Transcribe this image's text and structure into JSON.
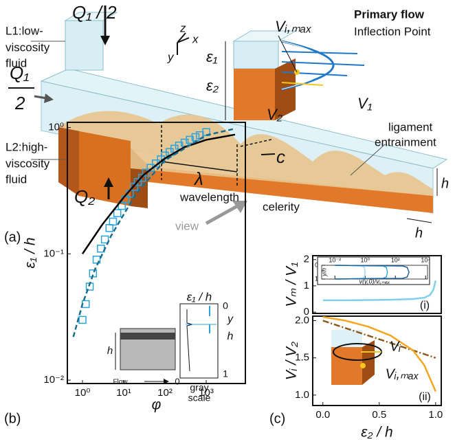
{
  "panel_a": {
    "low_fluid": [
      "L1:low-",
      "viscosity",
      "fluid"
    ],
    "high_fluid": [
      "L2:high-",
      "viscosity",
      "fluid"
    ],
    "q_top": "Q₁ / 2",
    "q_left_num": "Q₁",
    "q_left_den": "2",
    "q_bottom": "Q₂",
    "axes": [
      "z",
      "x",
      "y"
    ],
    "lambda": "λ",
    "wavelength": "wavelength",
    "c": "c",
    "celerity": "celerity",
    "ligament": [
      "ligament",
      "entrainment"
    ],
    "h_height": "h",
    "h_width": "h",
    "view": "view",
    "label": "(a)",
    "inset": {
      "title": "Primary flow",
      "inflection": "Inflection Point",
      "v_imax": "Vᵢ,ₘₐₓ",
      "eps1": "ε₁",
      "eps2": "ε₂",
      "v1": "V₁",
      "v2": "V₂"
    }
  },
  "panel_labels": {
    "b": "(b)",
    "c": "(c)"
  },
  "chart_data": [
    {
      "type": "scatter",
      "xlog": true,
      "ylog": true,
      "xlabel": "φ",
      "ylabel": "ε₁ / h",
      "xlim": [
        0.43,
        8900
      ],
      "ylim": [
        0.0094,
        1.1
      ],
      "xticks": [
        {
          "value": 1,
          "label": "10⁰"
        },
        {
          "value": 10,
          "label": "10¹"
        },
        {
          "value": 100,
          "label": "10²"
        },
        {
          "value": 1000,
          "label": "10³"
        }
      ],
      "yticks": [
        {
          "value": 0.01,
          "label": "10⁻²"
        },
        {
          "value": 0.1,
          "label": "10⁻¹"
        },
        {
          "value": 1,
          "label": "10⁰"
        }
      ],
      "series": [
        {
          "color": "#29a3e0",
          "marker": "square",
          "x": [
            1.0,
            1.2,
            1.5,
            1.8,
            2.2,
            2.8,
            3.5,
            4.5,
            5.5,
            7,
            9,
            11,
            14,
            18,
            22,
            28,
            35,
            45,
            60,
            80,
            100,
            130,
            170,
            220,
            300,
            400,
            550,
            700,
            1000
          ],
          "values": [
            0.03,
            0.04,
            0.055,
            0.07,
            0.09,
            0.11,
            0.13,
            0.16,
            0.18,
            0.21,
            0.24,
            0.27,
            0.3,
            0.34,
            0.37,
            0.4,
            0.44,
            0.48,
            0.52,
            0.56,
            0.6,
            0.64,
            0.68,
            0.72,
            0.76,
            0.8,
            0.84,
            0.87,
            0.92
          ]
        },
        {
          "color": "#000000",
          "x": [
            1,
            3,
            10,
            30,
            100,
            300,
            1000,
            5000
          ],
          "values": [
            0.1,
            0.17,
            0.28,
            0.42,
            0.57,
            0.7,
            0.8,
            0.88
          ]
        },
        {
          "color": "#1a6e8c",
          "dash": "dashed",
          "x": [
            0.6,
            1,
            2,
            5,
            20,
            100,
            1000,
            5000
          ],
          "values": [
            0.022,
            0.04,
            0.075,
            0.14,
            0.3,
            0.55,
            0.87,
            0.98
          ]
        }
      ],
      "inset_labels": [
        "h",
        "Flow",
        "0",
        "gray",
        "scale",
        "ε₁ / h",
        "0",
        "y",
        "h",
        "1"
      ]
    },
    {
      "type": "line",
      "ylabel": "Vₘ / V₁",
      "xlim": [
        -0.09,
        1.05
      ],
      "ylim": [
        -0.05,
        2.15
      ],
      "yticks": [
        0,
        1,
        2
      ],
      "series": [
        {
          "color": "#7fcfef",
          "x": [
            0,
            0.2,
            0.4,
            0.6,
            0.8,
            0.9,
            0.95,
            0.98,
            1.0
          ],
          "values": [
            0.45,
            0.45,
            0.46,
            0.47,
            0.5,
            0.55,
            0.65,
            0.85,
            1.2
          ]
        }
      ],
      "annotations": [
        "(i)"
      ]
    },
    {
      "type": "line",
      "xlabel": "ε₂ / h",
      "ylabel": "Vᵢ / V₂",
      "xlim": [
        -0.09,
        1.05
      ],
      "ylim": [
        0.86,
        2.06
      ],
      "xticks": [
        {
          "value": 0,
          "label": "0.0"
        },
        {
          "value": 0.5,
          "label": "0.5"
        },
        {
          "value": 1,
          "label": "1.0"
        }
      ],
      "yticks": [
        {
          "value": 1,
          "label": "1.0"
        },
        {
          "value": 1.5,
          "label": "1.5"
        },
        {
          "value": 2,
          "label": "2.0"
        }
      ],
      "series": [
        {
          "color": "#8b5a1e",
          "dash": "dashdot",
          "x": [
            0,
            1
          ],
          "values": [
            2.0,
            1.5
          ]
        },
        {
          "color": "#f5a623",
          "x": [
            0,
            0.2,
            0.4,
            0.6,
            0.8,
            0.9,
            1.0
          ],
          "values": [
            2.05,
            2.0,
            1.92,
            1.8,
            1.6,
            1.4,
            1.05
          ]
        }
      ],
      "annotations": [
        "(ii)",
        "Vᵢ",
        "Vᵢ,ₘₐₓ"
      ]
    },
    {
      "type": "line",
      "orientation": "horizontal",
      "xlog": true,
      "yinvert": true,
      "xlabel": "v(y,0)/vᵢ,ₘₐₓ",
      "ylabel": "y/h",
      "xlim": [
        0.00133,
        13300
      ],
      "ylim": [
        0,
        1
      ],
      "xticks": [
        {
          "value": 0.01,
          "label": "10⁻²"
        },
        {
          "value": 1,
          "label": "10⁰"
        },
        {
          "value": 100,
          "label": "10²"
        },
        {
          "value": 10000,
          "label": "10⁴"
        }
      ],
      "yticks": [
        0,
        1
      ],
      "y": [
        0,
        0.05,
        0.15,
        0.5,
        0.85,
        0.95,
        1
      ],
      "series": [
        {
          "color": "#9fdcf5",
          "values": [
            0.01,
            0.6,
            0.9,
            1,
            0.9,
            0.6,
            0.01
          ]
        },
        {
          "color": "#3aa6dc",
          "values": [
            0.01,
            15,
            25,
            30,
            25,
            15,
            0.01
          ]
        },
        {
          "color": "#1f5f9a",
          "values": [
            0.01,
            300,
            600,
            800,
            600,
            300,
            0.01
          ]
        }
      ]
    }
  ]
}
